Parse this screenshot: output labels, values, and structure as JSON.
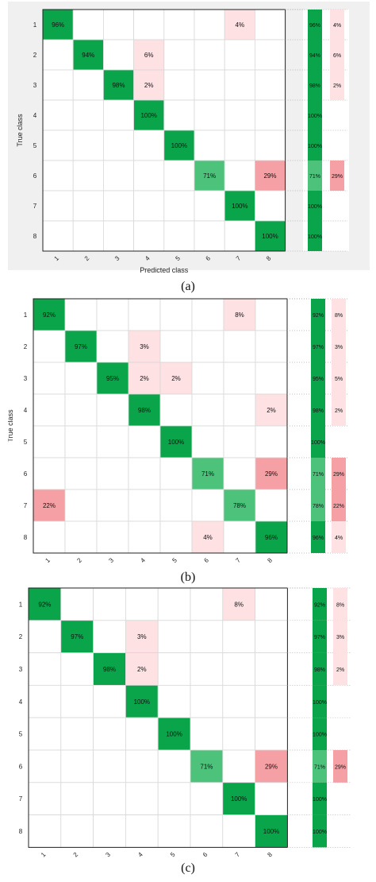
{
  "matrices": [
    {
      "caption": "(a)",
      "ylabel": "True class",
      "xlabel": "Predicted class",
      "row_labels": [
        "1",
        "2",
        "3",
        "4",
        "5",
        "6",
        "7",
        "8"
      ],
      "col_labels": [
        "1",
        "2",
        "3",
        "4",
        "5",
        "6",
        "7",
        "8"
      ],
      "cells": [
        [
          96,
          0,
          0,
          0,
          0,
          0,
          4,
          0
        ],
        [
          0,
          94,
          0,
          6,
          0,
          0,
          0,
          0
        ],
        [
          0,
          0,
          98,
          2,
          0,
          0,
          0,
          0
        ],
        [
          0,
          0,
          0,
          100,
          0,
          0,
          0,
          0
        ],
        [
          0,
          0,
          0,
          0,
          100,
          0,
          0,
          0
        ],
        [
          0,
          0,
          0,
          0,
          0,
          71,
          0,
          29
        ],
        [
          0,
          0,
          0,
          0,
          0,
          0,
          100,
          0
        ],
        [
          0,
          0,
          0,
          0,
          0,
          0,
          0,
          100
        ]
      ],
      "row_correct": [
        96,
        94,
        98,
        100,
        100,
        71,
        100,
        100
      ],
      "row_incorrect": [
        4,
        6,
        2,
        0,
        0,
        29,
        0,
        0
      ]
    },
    {
      "caption": "(b)",
      "ylabel": "True class",
      "xlabel": "",
      "row_labels": [
        "1",
        "2",
        "3",
        "4",
        "5",
        "6",
        "7",
        "8"
      ],
      "col_labels": [
        "1",
        "2",
        "3",
        "4",
        "5",
        "6",
        "7",
        "8"
      ],
      "cells": [
        [
          92,
          0,
          0,
          0,
          0,
          0,
          8,
          0
        ],
        [
          0,
          97,
          0,
          3,
          0,
          0,
          0,
          0
        ],
        [
          0,
          0,
          95,
          2,
          2,
          0,
          0,
          0
        ],
        [
          0,
          0,
          0,
          98,
          0,
          0,
          0,
          2
        ],
        [
          0,
          0,
          0,
          0,
          100,
          0,
          0,
          0
        ],
        [
          0,
          0,
          0,
          0,
          0,
          71,
          0,
          29
        ],
        [
          22,
          0,
          0,
          0,
          0,
          0,
          78,
          0
        ],
        [
          0,
          0,
          0,
          0,
          0,
          4,
          0,
          96
        ]
      ],
      "row_correct": [
        92,
        97,
        95,
        98,
        100,
        71,
        78,
        96
      ],
      "row_incorrect": [
        8,
        3,
        5,
        2,
        0,
        29,
        22,
        4
      ]
    },
    {
      "caption": "(c)",
      "ylabel": "True class",
      "xlabel": "",
      "row_labels": [
        "1",
        "2",
        "3",
        "4",
        "5",
        "6",
        "7",
        "8"
      ],
      "col_labels": [
        "1",
        "2",
        "3",
        "4",
        "5",
        "6",
        "7",
        "8"
      ],
      "cells": [
        [
          92,
          0,
          0,
          0,
          0,
          0,
          8,
          0
        ],
        [
          0,
          97,
          0,
          3,
          0,
          0,
          0,
          0
        ],
        [
          0,
          0,
          98,
          2,
          0,
          0,
          0,
          0
        ],
        [
          0,
          0,
          0,
          100,
          0,
          0,
          0,
          0
        ],
        [
          0,
          0,
          0,
          0,
          100,
          0,
          0,
          0
        ],
        [
          0,
          0,
          0,
          0,
          0,
          71,
          0,
          29
        ],
        [
          0,
          0,
          0,
          0,
          0,
          0,
          100,
          0
        ],
        [
          0,
          0,
          0,
          0,
          0,
          0,
          0,
          100
        ]
      ],
      "row_correct": [
        92,
        97,
        98,
        100,
        100,
        71,
        100,
        100
      ],
      "row_incorrect": [
        8,
        3,
        2,
        0,
        0,
        29,
        0,
        0
      ]
    }
  ],
  "chart_data": [
    {
      "type": "heatmap",
      "title": "",
      "xlabel": "Predicted class",
      "ylabel": "True class",
      "categories": [
        "1",
        "2",
        "3",
        "4",
        "5",
        "6",
        "7",
        "8"
      ],
      "values": [
        [
          96,
          0,
          0,
          0,
          0,
          0,
          4,
          0
        ],
        [
          0,
          94,
          0,
          6,
          0,
          0,
          0,
          0
        ],
        [
          0,
          0,
          98,
          2,
          0,
          0,
          0,
          0
        ],
        [
          0,
          0,
          0,
          100,
          0,
          0,
          0,
          0
        ],
        [
          0,
          0,
          0,
          0,
          100,
          0,
          0,
          0
        ],
        [
          0,
          0,
          0,
          0,
          0,
          71,
          0,
          29
        ],
        [
          0,
          0,
          0,
          0,
          0,
          0,
          100,
          0
        ],
        [
          0,
          0,
          0,
          0,
          0,
          0,
          0,
          100
        ]
      ],
      "unit": "%"
    },
    {
      "type": "heatmap",
      "title": "",
      "xlabel": "",
      "ylabel": "True class",
      "categories": [
        "1",
        "2",
        "3",
        "4",
        "5",
        "6",
        "7",
        "8"
      ],
      "values": [
        [
          92,
          0,
          0,
          0,
          0,
          0,
          8,
          0
        ],
        [
          0,
          97,
          0,
          3,
          0,
          0,
          0,
          0
        ],
        [
          0,
          0,
          95,
          2,
          2,
          0,
          0,
          0
        ],
        [
          0,
          0,
          0,
          98,
          0,
          0,
          0,
          2
        ],
        [
          0,
          0,
          0,
          0,
          100,
          0,
          0,
          0
        ],
        [
          0,
          0,
          0,
          0,
          0,
          71,
          0,
          29
        ],
        [
          22,
          0,
          0,
          0,
          0,
          0,
          78,
          0
        ],
        [
          0,
          0,
          0,
          0,
          0,
          4,
          0,
          96
        ]
      ],
      "unit": "%"
    },
    {
      "type": "heatmap",
      "title": "",
      "xlabel": "",
      "ylabel": "True class",
      "categories": [
        "1",
        "2",
        "3",
        "4",
        "5",
        "6",
        "7",
        "8"
      ],
      "values": [
        [
          92,
          0,
          0,
          0,
          0,
          0,
          8,
          0
        ],
        [
          0,
          97,
          0,
          3,
          0,
          0,
          0,
          0
        ],
        [
          0,
          0,
          98,
          2,
          0,
          0,
          0,
          0
        ],
        [
          0,
          0,
          0,
          100,
          0,
          0,
          0,
          0
        ],
        [
          0,
          0,
          0,
          0,
          100,
          0,
          0,
          0
        ],
        [
          0,
          0,
          0,
          0,
          0,
          71,
          0,
          29
        ],
        [
          0,
          0,
          0,
          0,
          0,
          0,
          100,
          0
        ],
        [
          0,
          0,
          0,
          0,
          0,
          0,
          0,
          100
        ]
      ],
      "unit": "%"
    }
  ],
  "colors": {
    "diag_strong": "#0aa44a",
    "diag_mid": "#4cc27a",
    "off_strong": "#f4a0a5",
    "off_light": "#fde1e3",
    "panel_bg": "#f0f0f0",
    "grid": "#bdbdbd"
  }
}
